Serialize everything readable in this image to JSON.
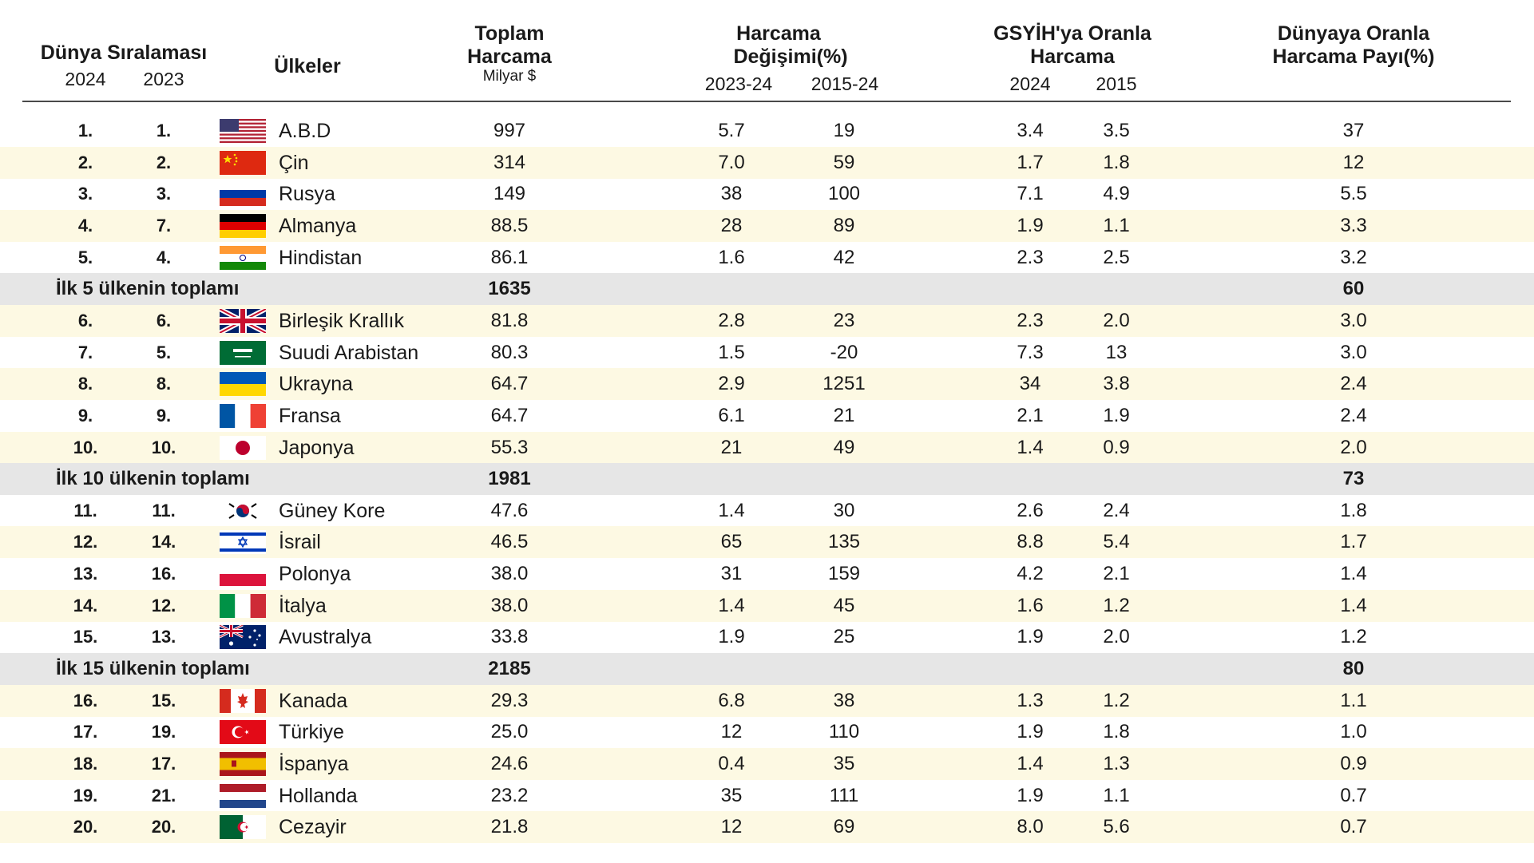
{
  "headers": {
    "world_rank": "Dünya Sıralaması",
    "year_2024": "2024",
    "year_2023": "2023",
    "countries": "Ülkeler",
    "total_line1": "Toplam",
    "total_line2": "Harcama",
    "total_unit": "Milyar $",
    "change_line1": "Harcama",
    "change_line2": "Değişimi(%)",
    "change_a": "2023-24",
    "change_b": "2015-24",
    "gdp_line1": "GSYİH'ya Oranla",
    "gdp_line2": "Harcama",
    "gdp_a": "2024",
    "gdp_b": "2015",
    "share_line1": "Dünyaya Oranla",
    "share_line2": "Harcama Payı(%)"
  },
  "rows": [
    {
      "type": "country",
      "r24": "1.",
      "r23": "1.",
      "flag": "usa-flag",
      "name": "A.B.D",
      "total": "997",
      "ch1": "5.7",
      "ch2": "19",
      "g24": "3.4",
      "g15": "3.5",
      "share": "37"
    },
    {
      "type": "country",
      "r24": "2.",
      "r23": "2.",
      "flag": "china-flag",
      "name": "Çin",
      "total": "314",
      "ch1": "7.0",
      "ch2": "59",
      "g24": "1.7",
      "g15": "1.8",
      "share": "12"
    },
    {
      "type": "country",
      "r24": "3.",
      "r23": "3.",
      "flag": "russia-flag",
      "name": "Rusya",
      "total": "149",
      "ch1": "38",
      "ch2": "100",
      "g24": "7.1",
      "g15": "4.9",
      "share": "5.5"
    },
    {
      "type": "country",
      "r24": "4.",
      "r23": "7.",
      "flag": "germany-flag",
      "name": "Almanya",
      "total": "88.5",
      "ch1": "28",
      "ch2": "89",
      "g24": "1.9",
      "g15": "1.1",
      "share": "3.3"
    },
    {
      "type": "country",
      "r24": "5.",
      "r23": "4.",
      "flag": "india-flag",
      "name": "Hindistan",
      "total": "86.1",
      "ch1": "1.6",
      "ch2": "42",
      "g24": "2.3",
      "g15": "2.5",
      "share": "3.2"
    },
    {
      "type": "total",
      "label": "İlk 5 ülkenin toplamı",
      "total": "1635",
      "share": "60"
    },
    {
      "type": "country",
      "r24": "6.",
      "r23": "6.",
      "flag": "uk-flag",
      "name": "Birleşik Krallık",
      "total": "81.8",
      "ch1": "2.8",
      "ch2": "23",
      "g24": "2.3",
      "g15": "2.0",
      "share": "3.0"
    },
    {
      "type": "country",
      "r24": "7.",
      "r23": "5.",
      "flag": "saudi-arabia-flag",
      "name": "Suudi Arabistan",
      "total": "80.3",
      "ch1": "1.5",
      "ch2": "-20",
      "g24": "7.3",
      "g15": "13",
      "share": "3.0"
    },
    {
      "type": "country",
      "r24": "8.",
      "r23": "8.",
      "flag": "ukraine-flag",
      "name": "Ukrayna",
      "total": "64.7",
      "ch1": "2.9",
      "ch2": "1251",
      "g24": "34",
      "g15": "3.8",
      "share": "2.4"
    },
    {
      "type": "country",
      "r24": "9.",
      "r23": "9.",
      "flag": "france-flag",
      "name": "Fransa",
      "total": "64.7",
      "ch1": "6.1",
      "ch2": "21",
      "g24": "2.1",
      "g15": "1.9",
      "share": "2.4"
    },
    {
      "type": "country",
      "r24": "10.",
      "r23": "10.",
      "flag": "japan-flag",
      "name": "Japonya",
      "total": "55.3",
      "ch1": "21",
      "ch2": "49",
      "g24": "1.4",
      "g15": "0.9",
      "share": "2.0"
    },
    {
      "type": "total",
      "label": "İlk 10 ülkenin toplamı",
      "total": "1981",
      "share": "73"
    },
    {
      "type": "country",
      "r24": "11.",
      "r23": "11.",
      "flag": "south-korea-flag",
      "name": "Güney Kore",
      "total": "47.6",
      "ch1": "1.4",
      "ch2": "30",
      "g24": "2.6",
      "g15": "2.4",
      "share": "1.8"
    },
    {
      "type": "country",
      "r24": "12.",
      "r23": "14.",
      "flag": "israel-flag",
      "name": "İsrail",
      "total": "46.5",
      "ch1": "65",
      "ch2": "135",
      "g24": "8.8",
      "g15": "5.4",
      "share": "1.7"
    },
    {
      "type": "country",
      "r24": "13.",
      "r23": "16.",
      "flag": "poland-flag",
      "name": "Polonya",
      "total": "38.0",
      "ch1": "31",
      "ch2": "159",
      "g24": "4.2",
      "g15": "2.1",
      "share": "1.4"
    },
    {
      "type": "country",
      "r24": "14.",
      "r23": "12.",
      "flag": "italy-flag",
      "name": "İtalya",
      "total": "38.0",
      "ch1": "1.4",
      "ch2": "45",
      "g24": "1.6",
      "g15": "1.2",
      "share": "1.4"
    },
    {
      "type": "country",
      "r24": "15.",
      "r23": "13.",
      "flag": "australia-flag",
      "name": "Avustralya",
      "total": "33.8",
      "ch1": "1.9",
      "ch2": "25",
      "g24": "1.9",
      "g15": "2.0",
      "share": "1.2"
    },
    {
      "type": "total",
      "label": "İlk 15 ülkenin toplamı",
      "total": "2185",
      "share": "80"
    },
    {
      "type": "country",
      "r24": "16.",
      "r23": "15.",
      "flag": "canada-flag",
      "name": "Kanada",
      "total": "29.3",
      "ch1": "6.8",
      "ch2": "38",
      "g24": "1.3",
      "g15": "1.2",
      "share": "1.1"
    },
    {
      "type": "country",
      "r24": "17.",
      "r23": "19.",
      "flag": "turkey-flag",
      "name": "Türkiye",
      "total": "25.0",
      "ch1": "12",
      "ch2": "110",
      "g24": "1.9",
      "g15": "1.8",
      "share": "1.0"
    },
    {
      "type": "country",
      "r24": "18.",
      "r23": "17.",
      "flag": "spain-flag",
      "name": "İspanya",
      "total": "24.6",
      "ch1": "0.4",
      "ch2": "35",
      "g24": "1.4",
      "g15": "1.3",
      "share": "0.9"
    },
    {
      "type": "country",
      "r24": "19.",
      "r23": "21.",
      "flag": "netherlands-flag",
      "name": "Hollanda",
      "total": "23.2",
      "ch1": "35",
      "ch2": "111",
      "g24": "1.9",
      "g15": "1.1",
      "share": "0.7"
    },
    {
      "type": "country",
      "r24": "20.",
      "r23": "20.",
      "flag": "algeria-flag",
      "name": "Cezayir",
      "total": "21.8",
      "ch1": "12",
      "ch2": "69",
      "g24": "8.0",
      "g15": "5.6",
      "share": "0.7"
    }
  ]
}
